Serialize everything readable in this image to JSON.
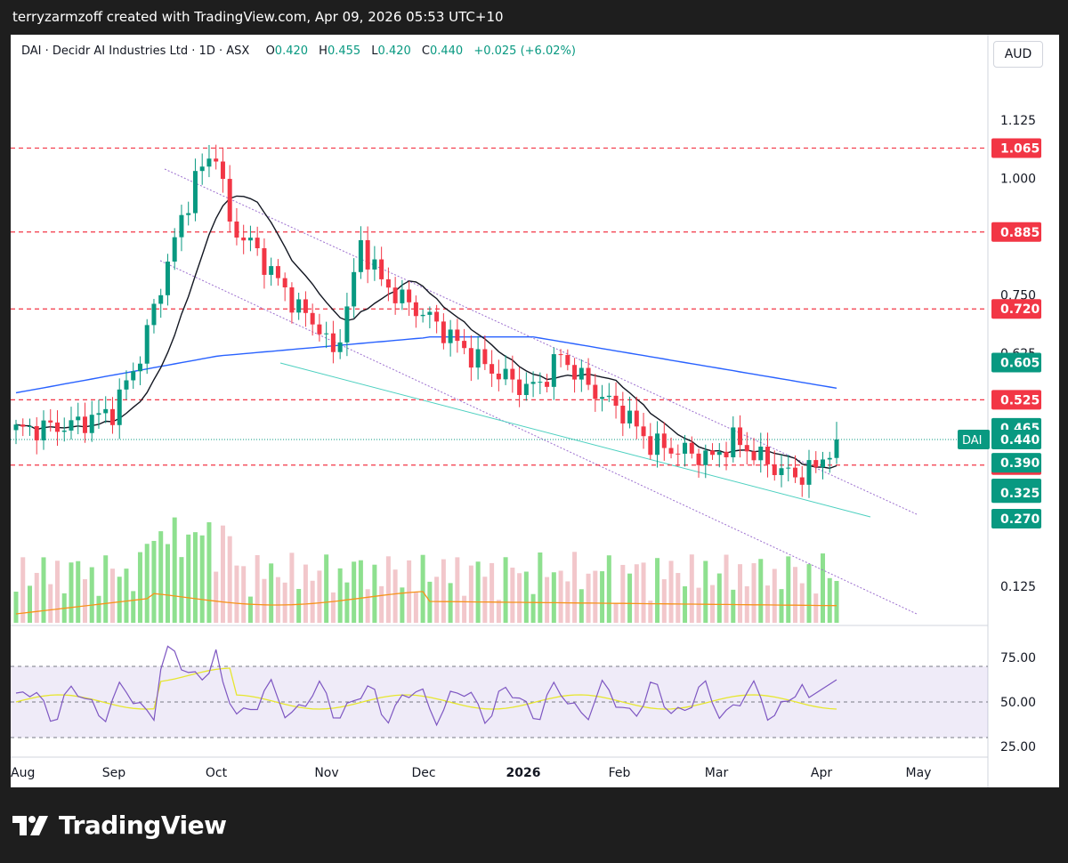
{
  "header": {
    "watermark_text": "terryzarmzoff created with TradingView.com, Apr 09, 2026 05:53 UTC+10"
  },
  "legend": {
    "symbol_line": "DAI · Decidr AI Industries Ltd · 1D · ASX",
    "o_label": "O",
    "o_value": "0.420",
    "h_label": "H",
    "h_value": "0.455",
    "l_label": "L",
    "l_value": "0.420",
    "c_label": "C",
    "c_value": "0.440",
    "change": "+0.025 (+6.02%)"
  },
  "currency": "AUD",
  "footer": {
    "brand": "TradingView"
  },
  "chart_data": {
    "type": "candlestick",
    "price_axis": {
      "ticks": [
        "1.125",
        "1.000",
        "0.750",
        "0.625",
        "0.125"
      ],
      "range": [
        0.06,
        1.25
      ]
    },
    "time_axis": {
      "ticks": [
        "Aug",
        "Sep",
        "Oct",
        "Nov",
        "Dec",
        "2026",
        "Feb",
        "Mar",
        "Apr",
        "May"
      ]
    },
    "rsi_axis": {
      "ticks": [
        "75.00",
        "50.00",
        "25.00"
      ],
      "range": [
        20,
        95
      ],
      "upper_band": 70,
      "lower_band": 30
    },
    "horizontal_levels": [
      {
        "value": 1.065,
        "label": "1.065",
        "color": "#f23645"
      },
      {
        "value": 0.885,
        "label": "0.885",
        "color": "#f23645"
      },
      {
        "value": 0.72,
        "label": "0.720",
        "color": "#f23645"
      },
      {
        "value": 0.525,
        "label": "0.525",
        "color": "#f23645"
      },
      {
        "value": 0.385,
        "label": "0.385",
        "color": "#f23645"
      }
    ],
    "price_labels": [
      {
        "value": 0.605,
        "label": "0.605",
        "color": "#089981"
      },
      {
        "value": 0.465,
        "label": "0.465",
        "color": "#089981"
      },
      {
        "value": 0.44,
        "label": "0.440",
        "color": "#089981",
        "symbol": "DAI"
      },
      {
        "value": 0.39,
        "label": "0.390",
        "color": "#089981"
      },
      {
        "value": 0.335,
        "label": "0.335",
        "color": "#089981"
      },
      {
        "value": 0.325,
        "label": "0.325",
        "color": "#089981"
      },
      {
        "value": 0.27,
        "label": "0.270",
        "color": "#089981"
      }
    ],
    "last_price": 0.44,
    "colors": {
      "up": "#089981",
      "down": "#f23645",
      "ma_long": "#2962ff",
      "ma_short": "#131722",
      "rsi": "#7e57c2",
      "rsi_ma": "#e6e62e",
      "vol_ma": "#f7931a",
      "channel": "#9c6fcf"
    }
  }
}
